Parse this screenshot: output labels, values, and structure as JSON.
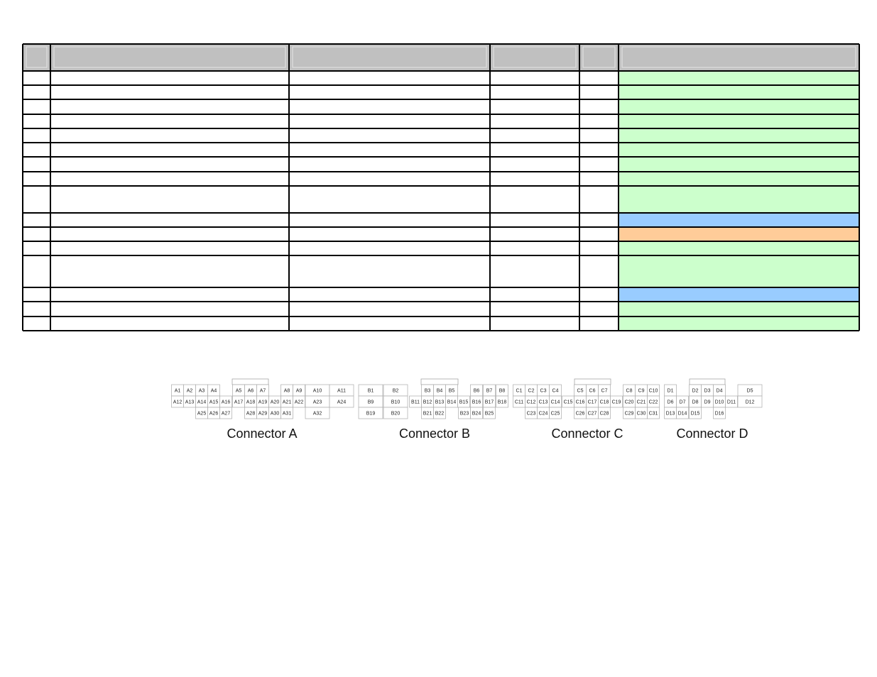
{
  "connectors": [
    {
      "name": "Connector A",
      "pins": [
        "A1",
        "A2",
        "A3",
        "A4",
        "A5",
        "A6",
        "A7",
        "A8",
        "A9",
        "A10",
        "A11",
        "A12",
        "A13",
        "A14",
        "A15",
        "A16",
        "A17",
        "A18",
        "A19",
        "A20",
        "A21",
        "A22",
        "A23",
        "A24",
        "A25",
        "A26",
        "A27",
        "A28",
        "A29",
        "A30",
        "A31",
        "A32"
      ]
    },
    {
      "name": "Connector B",
      "pins": [
        "B1",
        "B2",
        "B3",
        "B4",
        "B5",
        "B6",
        "B7",
        "B8",
        "B9",
        "B10",
        "B11",
        "B12",
        "B13",
        "B14",
        "B15",
        "B16",
        "B17",
        "B18",
        "B19",
        "B20",
        "B21",
        "B22",
        "B23",
        "B24",
        "B25"
      ]
    },
    {
      "name": "Connector C",
      "pins": [
        "C1",
        "C2",
        "C3",
        "C4",
        "C5",
        "C6",
        "C7",
        "C8",
        "C9",
        "C10",
        "C11",
        "C12",
        "C13",
        "C14",
        "C15",
        "C16",
        "C17",
        "C18",
        "C19",
        "C20",
        "C21",
        "C22",
        "C23",
        "C24",
        "C25",
        "C26",
        "C27",
        "C28",
        "C29",
        "C30",
        "C31"
      ]
    },
    {
      "name": "Connector D",
      "pins": [
        "D1",
        "D2",
        "D3",
        "D4",
        "D5",
        "D6",
        "D7",
        "D8",
        "D9",
        "D10",
        "D11",
        "D12",
        "D13",
        "D14",
        "D15",
        "D16"
      ]
    }
  ]
}
